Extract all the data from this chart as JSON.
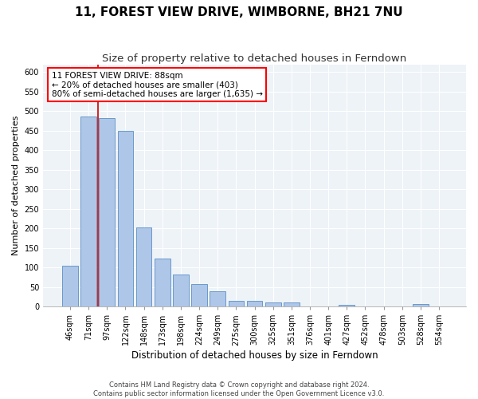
{
  "title": "11, FOREST VIEW DRIVE, WIMBORNE, BH21 7NU",
  "subtitle": "Size of property relative to detached houses in Ferndown",
  "xlabel": "Distribution of detached houses by size in Ferndown",
  "ylabel": "Number of detached properties",
  "footer1": "Contains HM Land Registry data © Crown copyright and database right 2024.",
  "footer2": "Contains public sector information licensed under the Open Government Licence v3.0.",
  "categories": [
    "46sqm",
    "71sqm",
    "97sqm",
    "122sqm",
    "148sqm",
    "173sqm",
    "198sqm",
    "224sqm",
    "249sqm",
    "275sqm",
    "300sqm",
    "325sqm",
    "351sqm",
    "376sqm",
    "401sqm",
    "427sqm",
    "452sqm",
    "478sqm",
    "503sqm",
    "528sqm",
    "554sqm"
  ],
  "values": [
    105,
    487,
    483,
    450,
    202,
    123,
    82,
    57,
    38,
    15,
    15,
    10,
    10,
    0,
    0,
    5,
    0,
    0,
    0,
    7,
    0
  ],
  "bar_color": "#aec6e8",
  "bar_edge_color": "#5a8fc2",
  "vline_x": 1.5,
  "highlight_color": "#cc0000",
  "annotation_box_text": "11 FOREST VIEW DRIVE: 88sqm\n← 20% of detached houses are smaller (403)\n80% of semi-detached houses are larger (1,635) →",
  "ylim": [
    0,
    620
  ],
  "yticks": [
    0,
    50,
    100,
    150,
    200,
    250,
    300,
    350,
    400,
    450,
    500,
    550,
    600
  ],
  "bg_color": "#eef3f8",
  "grid_color": "#ffffff",
  "title_fontsize": 11,
  "subtitle_fontsize": 9.5,
  "ylabel_fontsize": 8,
  "xlabel_fontsize": 8.5,
  "tick_fontsize": 7,
  "annotation_fontsize": 7.5,
  "footer_fontsize": 6
}
